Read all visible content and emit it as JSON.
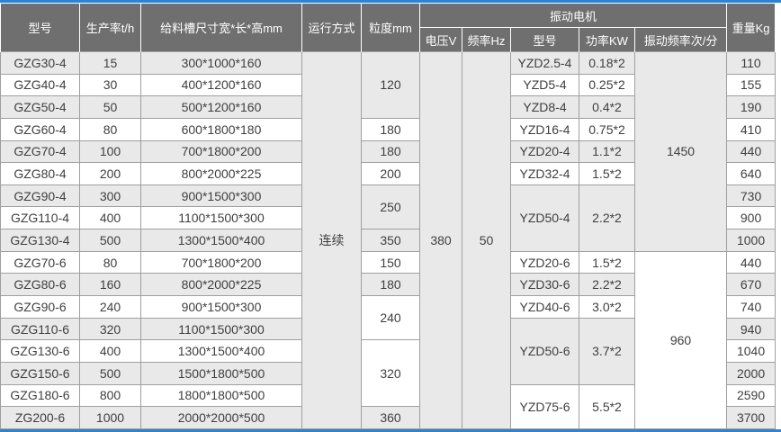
{
  "colors": {
    "accent_blue": "#2e82d2",
    "header_bg": "#6f6f6f",
    "header_text": "#ffffff",
    "row_alt_bg": "#e9e9e9",
    "row_bg": "#ffffff",
    "grid_line": "#9f9f9f",
    "body_text": "#3f3f3f"
  },
  "table": {
    "header": {
      "model": "型号",
      "rate": "生产率t/h",
      "trough": "给料槽尺寸宽*长*高mm",
      "mode": "运行方式",
      "particle": "粒度mm",
      "motor_group": "振动电机",
      "voltage": "电压V",
      "frequency": "频率Hz",
      "motor_model": "型号",
      "power": "功率KW",
      "vib_freq": "振动频率次/分",
      "weight": "重量Kg"
    },
    "rows": [
      {
        "cells": [
          {
            "col": "model",
            "text": "GZG30-4"
          },
          {
            "col": "rate",
            "text": "15"
          },
          {
            "col": "trough",
            "text": "300*1000*160"
          },
          {
            "col": "mode",
            "text": "连续",
            "rowspan": 17
          },
          {
            "col": "particle",
            "text": "120",
            "rowspan": 3
          },
          {
            "col": "voltage",
            "text": "380",
            "rowspan": 17
          },
          {
            "col": "frequency",
            "text": "50",
            "rowspan": 17
          },
          {
            "col": "motor_model",
            "text": "YZD2.5-4"
          },
          {
            "col": "power",
            "text": "0.18*2"
          },
          {
            "col": "vib_freq",
            "text": "1450",
            "rowspan": 9
          },
          {
            "col": "weight",
            "text": "110"
          }
        ]
      },
      {
        "cells": [
          {
            "col": "model",
            "text": "GZG40-4"
          },
          {
            "col": "rate",
            "text": "30"
          },
          {
            "col": "trough",
            "text": "400*1200*160"
          },
          {
            "col": "motor_model",
            "text": "YZD5-4"
          },
          {
            "col": "power",
            "text": "0.25*2"
          },
          {
            "col": "weight",
            "text": "155"
          }
        ]
      },
      {
        "cells": [
          {
            "col": "model",
            "text": "GZG50-4"
          },
          {
            "col": "rate",
            "text": "50"
          },
          {
            "col": "trough",
            "text": "500*1200*160"
          },
          {
            "col": "motor_model",
            "text": "YZD8-4"
          },
          {
            "col": "power",
            "text": "0.4*2"
          },
          {
            "col": "weight",
            "text": "190"
          }
        ]
      },
      {
        "cells": [
          {
            "col": "model",
            "text": "GZG60-4"
          },
          {
            "col": "rate",
            "text": "80"
          },
          {
            "col": "trough",
            "text": "600*1800*180"
          },
          {
            "col": "particle",
            "text": "180"
          },
          {
            "col": "motor_model",
            "text": "YZD16-4"
          },
          {
            "col": "power",
            "text": "0.75*2"
          },
          {
            "col": "weight",
            "text": "410"
          }
        ]
      },
      {
        "cells": [
          {
            "col": "model",
            "text": "GZG70-4"
          },
          {
            "col": "rate",
            "text": "100"
          },
          {
            "col": "trough",
            "text": "700*1800*200"
          },
          {
            "col": "particle",
            "text": "180"
          },
          {
            "col": "motor_model",
            "text": "YZD20-4"
          },
          {
            "col": "power",
            "text": "1.1*2"
          },
          {
            "col": "weight",
            "text": "440"
          }
        ]
      },
      {
        "cells": [
          {
            "col": "model",
            "text": "GZG80-4"
          },
          {
            "col": "rate",
            "text": "200"
          },
          {
            "col": "trough",
            "text": "800*2000*225"
          },
          {
            "col": "particle",
            "text": "200"
          },
          {
            "col": "motor_model",
            "text": "YZD32-4"
          },
          {
            "col": "power",
            "text": "1.5*2"
          },
          {
            "col": "weight",
            "text": "640"
          }
        ]
      },
      {
        "cells": [
          {
            "col": "model",
            "text": "GZG90-4"
          },
          {
            "col": "rate",
            "text": "300"
          },
          {
            "col": "trough",
            "text": "900*1500*300"
          },
          {
            "col": "particle",
            "text": "250",
            "rowspan": 2
          },
          {
            "col": "motor_model",
            "text": "YZD50-4",
            "rowspan": 3
          },
          {
            "col": "power",
            "text": "2.2*2",
            "rowspan": 3
          },
          {
            "col": "weight",
            "text": "730"
          }
        ]
      },
      {
        "cells": [
          {
            "col": "model",
            "text": "GZG110-4"
          },
          {
            "col": "rate",
            "text": "400"
          },
          {
            "col": "trough",
            "text": "1100*1500*300"
          },
          {
            "col": "weight",
            "text": "900"
          }
        ]
      },
      {
        "cells": [
          {
            "col": "model",
            "text": "GZG130-4"
          },
          {
            "col": "rate",
            "text": "500"
          },
          {
            "col": "trough",
            "text": "1300*1500*400"
          },
          {
            "col": "particle",
            "text": "350"
          },
          {
            "col": "weight",
            "text": "1000"
          }
        ]
      },
      {
        "cells": [
          {
            "col": "model",
            "text": "GZG70-6"
          },
          {
            "col": "rate",
            "text": "80"
          },
          {
            "col": "trough",
            "text": "700*1800*200"
          },
          {
            "col": "particle",
            "text": "150"
          },
          {
            "col": "motor_model",
            "text": "YZD20-6"
          },
          {
            "col": "power",
            "text": "1.5*2"
          },
          {
            "col": "vib_freq",
            "text": "960",
            "rowspan": 8
          },
          {
            "col": "weight",
            "text": "440"
          }
        ]
      },
      {
        "cells": [
          {
            "col": "model",
            "text": "GZG80-6"
          },
          {
            "col": "rate",
            "text": "160"
          },
          {
            "col": "trough",
            "text": "800*2000*225"
          },
          {
            "col": "particle",
            "text": "180"
          },
          {
            "col": "motor_model",
            "text": "YZD30-6"
          },
          {
            "col": "power",
            "text": "2.2*2"
          },
          {
            "col": "weight",
            "text": "670"
          }
        ]
      },
      {
        "cells": [
          {
            "col": "model",
            "text": "GZG90-6"
          },
          {
            "col": "rate",
            "text": "240"
          },
          {
            "col": "trough",
            "text": "900*1500*300"
          },
          {
            "col": "particle",
            "text": "240",
            "rowspan": 2
          },
          {
            "col": "motor_model",
            "text": "YZD40-6"
          },
          {
            "col": "power",
            "text": "3.0*2"
          },
          {
            "col": "weight",
            "text": "740"
          }
        ]
      },
      {
        "cells": [
          {
            "col": "model",
            "text": "GZG110-6"
          },
          {
            "col": "rate",
            "text": "320"
          },
          {
            "col": "trough",
            "text": "1100*1500*300"
          },
          {
            "col": "motor_model",
            "text": "YZD50-6",
            "rowspan": 3
          },
          {
            "col": "power",
            "text": "3.7*2",
            "rowspan": 3
          },
          {
            "col": "weight",
            "text": "940"
          }
        ]
      },
      {
        "cells": [
          {
            "col": "model",
            "text": "GZG130-6"
          },
          {
            "col": "rate",
            "text": "400"
          },
          {
            "col": "trough",
            "text": "1300*1500*400"
          },
          {
            "col": "particle",
            "text": "320",
            "rowspan": 3
          },
          {
            "col": "weight",
            "text": "1040"
          }
        ]
      },
      {
        "cells": [
          {
            "col": "model",
            "text": "GZG150-6"
          },
          {
            "col": "rate",
            "text": "500"
          },
          {
            "col": "trough",
            "text": "1500*1800*500"
          },
          {
            "col": "weight",
            "text": "2000"
          }
        ]
      },
      {
        "cells": [
          {
            "col": "model",
            "text": "GZG180-6"
          },
          {
            "col": "rate",
            "text": "800"
          },
          {
            "col": "trough",
            "text": "1800*1800*500"
          },
          {
            "col": "motor_model",
            "text": "YZD75-6",
            "rowspan": 2
          },
          {
            "col": "power",
            "text": "5.5*2",
            "rowspan": 2
          },
          {
            "col": "weight",
            "text": "2590"
          }
        ]
      },
      {
        "cells": [
          {
            "col": "model",
            "text": "ZG200-6"
          },
          {
            "col": "rate",
            "text": "1000"
          },
          {
            "col": "trough",
            "text": "2000*2000*500"
          },
          {
            "col": "particle",
            "text": "360"
          },
          {
            "col": "weight",
            "text": "3700"
          }
        ]
      }
    ]
  }
}
